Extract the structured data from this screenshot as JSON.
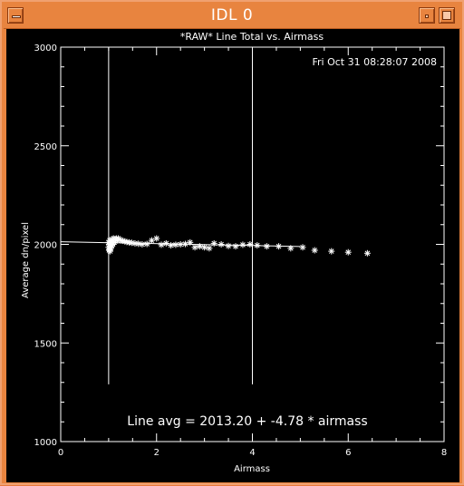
{
  "window": {
    "title": "IDL 0"
  },
  "chart_data": {
    "type": "scatter",
    "title": "*RAW* Line Total vs. Airmass",
    "timestamp": "Fri Oct 31 08:28:07 2008",
    "xlabel": "Airmass",
    "ylabel": "Average dn/pixel",
    "xlim": [
      0,
      8
    ],
    "ylim": [
      1000,
      3000
    ],
    "x_ticks": [
      "0",
      "2",
      "4",
      "6",
      "8"
    ],
    "y_ticks": [
      "1000",
      "1500",
      "2000",
      "2500",
      "3000"
    ],
    "grid": false,
    "fit": {
      "intercept": 2013.2,
      "slope": -4.78,
      "x_range": [
        0,
        5
      ]
    },
    "fit_label": "Line avg = 2013.20 + -4.78 * airmass",
    "vertical_lines": [
      1.0,
      4.0
    ],
    "series": [
      {
        "x": [
          1.0,
          1.0,
          1.01,
          1.01,
          1.02,
          1.02,
          1.03,
          1.03,
          1.04,
          1.05,
          1.06,
          1.07,
          1.08,
          1.09,
          1.1,
          1.12,
          1.14,
          1.16,
          1.18,
          1.2,
          1.23,
          1.26,
          1.3,
          1.34,
          1.38,
          1.43,
          1.48,
          1.55,
          1.62,
          1.7,
          1.8,
          1.9,
          2.0,
          2.1,
          2.2,
          2.3,
          2.4,
          2.5,
          2.6,
          2.7,
          2.8,
          2.9,
          3.0,
          3.1,
          3.2,
          3.35,
          3.5,
          3.65,
          3.8,
          3.95,
          4.1,
          4.3,
          4.55,
          4.8,
          5.05,
          5.3,
          5.65,
          6.0,
          6.4
        ],
        "y": [
          1985,
          2010,
          1970,
          2000,
          1975,
          2020,
          1965,
          2005,
          1990,
          1980,
          2015,
          1995,
          2025,
          2000,
          2030,
          2010,
          2025,
          2030,
          2020,
          2030,
          2025,
          2020,
          2018,
          2015,
          2012,
          2010,
          2008,
          2005,
          2003,
          2000,
          2002,
          2020,
          2030,
          1998,
          2005,
          1995,
          1998,
          2000,
          2002,
          2010,
          1985,
          1990,
          1985,
          1980,
          2005,
          2000,
          1992,
          1990,
          1998,
          2000,
          1995,
          1990,
          1990,
          1980,
          1985,
          1970,
          1965,
          1960,
          1955
        ]
      }
    ]
  }
}
